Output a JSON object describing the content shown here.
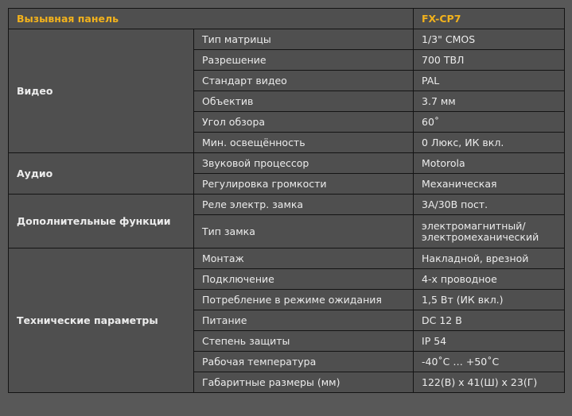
{
  "header": {
    "title": "Вызывная панель",
    "model": "FX-CP7"
  },
  "colors": {
    "accent": "#f2b21c",
    "background": "#585858",
    "text": "#ececec"
  },
  "groups": [
    {
      "name": "Видео",
      "rows": [
        {
          "param": "Тип матрицы",
          "value": "1/3\" CMOS"
        },
        {
          "param": "Разрешение",
          "value": "700 ТВЛ"
        },
        {
          "param": "Стандарт видео",
          "value": "PAL"
        },
        {
          "param": "Объектив",
          "value": "3.7 мм"
        },
        {
          "param": "Угол обзора",
          "value": "60˚"
        },
        {
          "param": "Мин. освещённость",
          "value": "0 Люкс, ИК вкл."
        }
      ]
    },
    {
      "name": "Аудио",
      "rows": [
        {
          "param": "Звуковой процессор",
          "value": "Motorola"
        },
        {
          "param": "Регулировка громкости",
          "value": "Механическая"
        }
      ]
    },
    {
      "name": "Дополнительные функции",
      "rows": [
        {
          "param": "Реле электр. замка",
          "value": "3А/30В пост."
        },
        {
          "param": "Тип замка",
          "value": "электромагнитный/ электромеханический"
        }
      ]
    },
    {
      "name": "Технические параметры",
      "rows": [
        {
          "param": "Монтаж",
          "value": "Накладной, врезной"
        },
        {
          "param": "Подключение",
          "value": "4-х проводное"
        },
        {
          "param": "Потребление в режиме ожидания",
          "value": "1,5 Вт (ИК вкл.)"
        },
        {
          "param": "Питание",
          "value": "DC 12 В"
        },
        {
          "param": "Степень защиты",
          "value": "IP 54"
        },
        {
          "param": "Рабочая температура",
          "value": "-40˚С … +50˚С"
        },
        {
          "param": "Габаритные размеры (мм)",
          "value": "122(В) x 41(Ш) x 23(Г)"
        }
      ]
    }
  ]
}
